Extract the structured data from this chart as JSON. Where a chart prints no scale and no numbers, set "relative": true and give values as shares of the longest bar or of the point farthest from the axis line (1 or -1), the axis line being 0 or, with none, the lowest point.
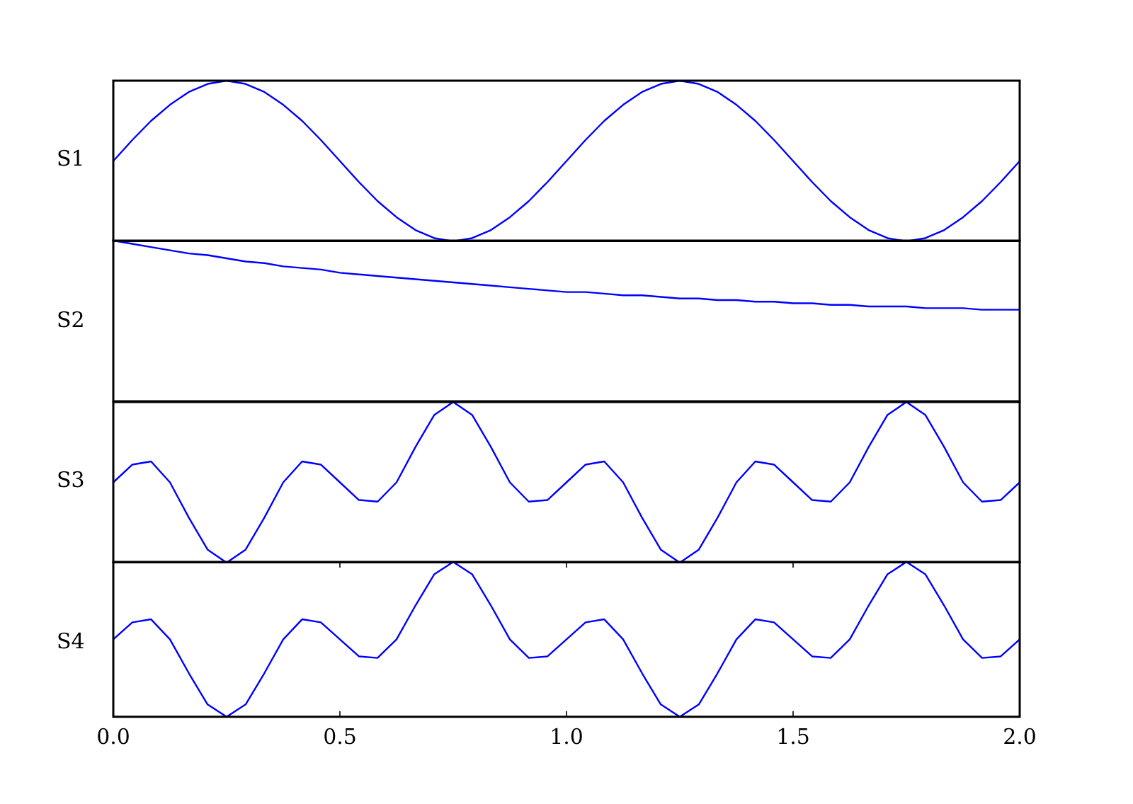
{
  "chart_data": [
    {
      "type": "line",
      "ylabel": "S1",
      "relative": true,
      "color": "#0000ff",
      "tick_labels": false,
      "categories": [
        null,
        null,
        null,
        null,
        null,
        null,
        null,
        null,
        null,
        null,
        null,
        null,
        null,
        null,
        null,
        null,
        null,
        null,
        null,
        null,
        null,
        null,
        null,
        null,
        null,
        null,
        null,
        null,
        null,
        null,
        null,
        null,
        null,
        null,
        null,
        null,
        null,
        null,
        null,
        null,
        null,
        null,
        null,
        null,
        null,
        null,
        null,
        null,
        null
      ],
      "values": [
        0.5,
        0.63,
        0.75,
        0.85,
        0.93,
        0.98,
        1,
        0.98,
        0.93,
        0.85,
        0.75,
        0.63,
        0.5,
        0.37,
        0.25,
        0.15,
        0.07,
        0.02,
        0,
        0.02,
        0.07,
        0.15,
        0.25,
        0.37,
        0.5,
        0.63,
        0.75,
        0.85,
        0.93,
        0.98,
        1,
        0.98,
        0.93,
        0.85,
        0.75,
        0.63,
        0.5,
        0.37,
        0.25,
        0.15,
        0.07,
        0.02,
        0,
        0.02,
        0.07,
        0.15,
        0.25,
        0.37,
        0.5
      ]
    },
    {
      "type": "line",
      "ylabel": "S2",
      "relative": true,
      "color": "#0000ff",
      "tick_labels": false,
      "categories": [
        null,
        null,
        null,
        null,
        null,
        null,
        null,
        null,
        null,
        null,
        null,
        null,
        null,
        null,
        null,
        null,
        null,
        null,
        null,
        null,
        null,
        null,
        null,
        null,
        null,
        null,
        null,
        null,
        null,
        null,
        null,
        null,
        null,
        null,
        null,
        null,
        null,
        null,
        null,
        null,
        null,
        null,
        null,
        null,
        null,
        null,
        null,
        null,
        null
      ],
      "values": [
        1,
        0.98,
        0.96,
        0.94,
        0.92,
        0.91,
        0.89,
        0.87,
        0.86,
        0.84,
        0.83,
        0.82,
        0.8,
        0.79,
        0.78,
        0.77,
        0.76,
        0.75,
        0.74,
        0.73,
        0.72,
        0.71,
        0.7,
        0.69,
        0.68,
        0.68,
        0.67,
        0.66,
        0.66,
        0.65,
        0.64,
        0.64,
        0.63,
        0.63,
        0.62,
        0.62,
        0.61,
        0.61,
        0.6,
        0.6,
        0.59,
        0.59,
        0.59,
        0.58,
        0.58,
        0.58,
        0.57,
        0.57,
        0.57
      ]
    },
    {
      "type": "line",
      "ylabel": "S3",
      "relative": true,
      "color": "#0000ff",
      "tick_labels": false,
      "categories": [
        null,
        null,
        null,
        null,
        null,
        null,
        null,
        null,
        null,
        null,
        null,
        null,
        null,
        null,
        null,
        null,
        null,
        null,
        null,
        null,
        null,
        null,
        null,
        null,
        null,
        null,
        null,
        null,
        null,
        null,
        null,
        null,
        null,
        null,
        null,
        null,
        null,
        null,
        null,
        null,
        null,
        null,
        null,
        null,
        null,
        null,
        null,
        null,
        null
      ],
      "values": [
        0.5,
        0.61,
        0.63,
        0.5,
        0.28,
        0.08,
        0,
        0.08,
        0.28,
        0.5,
        0.63,
        0.61,
        0.5,
        0.39,
        0.38,
        0.5,
        0.72,
        0.92,
        1,
        0.92,
        0.72,
        0.5,
        0.38,
        0.39,
        0.5,
        0.61,
        0.63,
        0.5,
        0.28,
        0.08,
        0,
        0.08,
        0.28,
        0.5,
        0.63,
        0.61,
        0.5,
        0.39,
        0.38,
        0.5,
        0.72,
        0.92,
        1,
        0.92,
        0.72,
        0.5,
        0.38,
        0.39,
        0.5
      ]
    },
    {
      "type": "line",
      "ylabel": "S4",
      "relative": true,
      "color": "#0000ff",
      "xlim": [
        0,
        2
      ],
      "tick_labels": "x",
      "xticks": [
        {
          "value": 0,
          "label": "0.0"
        },
        {
          "value": 0.5,
          "label": "0.5"
        },
        {
          "value": 1,
          "label": "1.0"
        },
        {
          "value": 1.5,
          "label": "1.5"
        },
        {
          "value": 2,
          "label": "2.0"
        }
      ],
      "x": [
        0,
        0.042,
        0.083,
        0.125,
        0.167,
        0.208,
        0.25,
        0.292,
        0.333,
        0.375,
        0.417,
        0.458,
        0.5,
        0.542,
        0.583,
        0.625,
        0.667,
        0.708,
        0.75,
        0.792,
        0.833,
        0.875,
        0.917,
        0.958,
        1,
        1.042,
        1.083,
        1.125,
        1.167,
        1.208,
        1.25,
        1.292,
        1.333,
        1.375,
        1.417,
        1.458,
        1.5,
        1.542,
        1.583,
        1.625,
        1.667,
        1.708,
        1.75,
        1.792,
        1.833,
        1.875,
        1.917,
        1.958,
        2
      ],
      "values": [
        0.5,
        0.61,
        0.63,
        0.5,
        0.28,
        0.08,
        0,
        0.08,
        0.28,
        0.5,
        0.63,
        0.61,
        0.5,
        0.39,
        0.38,
        0.5,
        0.72,
        0.92,
        1,
        0.92,
        0.72,
        0.5,
        0.38,
        0.39,
        0.5,
        0.61,
        0.63,
        0.5,
        0.28,
        0.08,
        0,
        0.08,
        0.28,
        0.5,
        0.63,
        0.61,
        0.5,
        0.39,
        0.38,
        0.5,
        0.72,
        0.92,
        1,
        0.92,
        0.72,
        0.5,
        0.38,
        0.39,
        0.5
      ]
    }
  ]
}
